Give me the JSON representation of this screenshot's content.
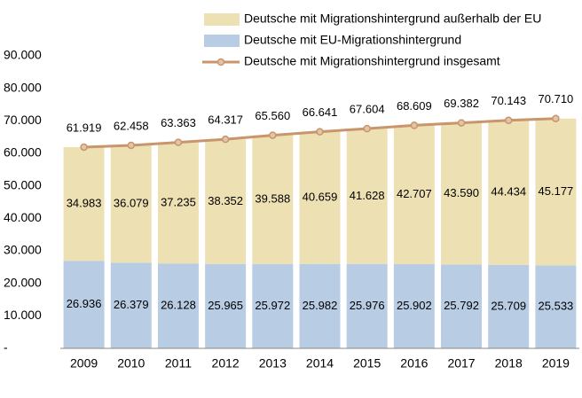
{
  "chart_data": {
    "type": "bar",
    "categories": [
      "2009",
      "2010",
      "2011",
      "2012",
      "2013",
      "2014",
      "2015",
      "2016",
      "2017",
      "2018",
      "2019"
    ],
    "series": [
      {
        "name": "Deutsche mit Migrationshintergrund außerhalb der EU",
        "type": "bar",
        "color": "#ede1b4",
        "values": [
          34983,
          36079,
          37235,
          38352,
          39588,
          40659,
          41628,
          42707,
          43590,
          44434,
          45177
        ],
        "value_labels": [
          "34.983",
          "36.079",
          "37.235",
          "38.352",
          "39.588",
          "40.659",
          "41.628",
          "42.707",
          "43.590",
          "44.434",
          "45.177"
        ]
      },
      {
        "name": "Deutsche mit EU-Migrationshintergrund",
        "type": "bar",
        "color": "#b8cce4",
        "values": [
          26936,
          26379,
          26128,
          25965,
          25972,
          25982,
          25976,
          25902,
          25792,
          25709,
          25533
        ],
        "value_labels": [
          "26.936",
          "26.379",
          "26.128",
          "25.965",
          "25.972",
          "25.982",
          "25.976",
          "25.902",
          "25.792",
          "25.709",
          "25.533"
        ]
      },
      {
        "name": "Deutsche mit Migrationshintergrund insgesamt",
        "type": "line",
        "color": "#c8956c",
        "values": [
          61919,
          62458,
          63363,
          64317,
          65560,
          66641,
          67604,
          68609,
          69382,
          70143,
          70710
        ],
        "value_labels": [
          "61.919",
          "62.458",
          "63.363",
          "64.317",
          "65.560",
          "66.641",
          "67.604",
          "68.609",
          "69.382",
          "70.143",
          "70.710"
        ]
      }
    ],
    "ylim": [
      0,
      90000
    ],
    "yticks": [
      {
        "value": 0,
        "label": "-"
      },
      {
        "value": 10000,
        "label": "10.000"
      },
      {
        "value": 20000,
        "label": "20.000"
      },
      {
        "value": 30000,
        "label": "30.000"
      },
      {
        "value": 40000,
        "label": "40.000"
      },
      {
        "value": 50000,
        "label": "50.000"
      },
      {
        "value": 60000,
        "label": "60.000"
      },
      {
        "value": 70000,
        "label": "70.000"
      },
      {
        "value": 80000,
        "label": "80.000"
      },
      {
        "value": 90000,
        "label": "90.000"
      }
    ],
    "grid": false
  }
}
